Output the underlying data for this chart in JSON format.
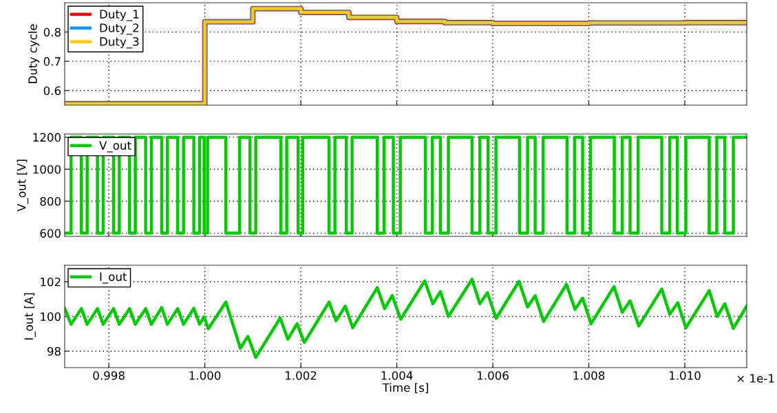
{
  "chart_data": [
    {
      "type": "step",
      "ylabel": "Duty cycle",
      "xlim": [
        0.99708,
        1.01129
      ],
      "xticks": [
        {
          "value": 0.998,
          "label": null
        },
        {
          "value": 1.0,
          "label": null
        },
        {
          "value": 1.002,
          "label": null
        },
        {
          "value": 1.004,
          "label": null
        },
        {
          "value": 1.006,
          "label": null
        },
        {
          "value": 1.008,
          "label": null
        },
        {
          "value": 1.01,
          "label": null
        }
      ],
      "ylim": [
        0.55,
        0.9
      ],
      "yticks": [
        0.6,
        0.7,
        0.8
      ],
      "tick_labels": "y",
      "grid": true,
      "legend": "top left",
      "series": [
        {
          "name": "Duty_1",
          "color": "#ff0000",
          "x": [
            0.99708,
            1.0,
            1.001,
            1.002,
            1.003,
            1.004,
            1.005,
            1.006,
            1.008,
            1.01,
            1.01129
          ],
          "values": [
            0.555,
            0.835,
            0.88,
            0.867,
            0.85,
            0.836,
            0.832,
            0.829,
            0.831,
            0.832,
            0.832
          ]
        },
        {
          "name": "Duty_2",
          "color": "#0099ff",
          "x": [
            0.99708,
            1.0,
            1.001,
            1.002,
            1.003,
            1.004,
            1.005,
            1.006,
            1.008,
            1.01,
            1.01129
          ],
          "values": [
            0.555,
            0.835,
            0.88,
            0.867,
            0.85,
            0.836,
            0.832,
            0.829,
            0.831,
            0.832,
            0.832
          ]
        },
        {
          "name": "Duty_3",
          "color": "#ffcc00",
          "x": [
            0.99708,
            1.0,
            1.001,
            1.002,
            1.003,
            1.004,
            1.005,
            1.006,
            1.008,
            1.01,
            1.01129
          ],
          "values": [
            0.555,
            0.835,
            0.88,
            0.867,
            0.85,
            0.836,
            0.832,
            0.829,
            0.831,
            0.832,
            0.832
          ]
        }
      ]
    },
    {
      "type": "step",
      "ylabel": "V_out [V]",
      "xlim": [
        0.99708,
        1.01129
      ],
      "xticks": [
        {
          "value": 0.998,
          "label": null
        },
        {
          "value": 1.0,
          "label": null
        },
        {
          "value": 1.002,
          "label": null
        },
        {
          "value": 1.004,
          "label": null
        },
        {
          "value": 1.006,
          "label": null
        },
        {
          "value": 1.008,
          "label": null
        },
        {
          "value": 1.01,
          "label": null
        }
      ],
      "ylim": [
        580,
        1220
      ],
      "yticks": [
        600,
        800,
        1000,
        1200
      ],
      "tick_labels": "y",
      "grid": true,
      "legend": "top left",
      "series": [
        {
          "name": "V_out",
          "color": "#00cc00",
          "x": [
            0.99708,
            0.997213,
            0.997428,
            0.997548,
            0.997763,
            0.997882,
            0.998097,
            0.998217,
            0.998432,
            0.998552,
            0.998767,
            0.998886,
            0.999101,
            0.99922,
            0.999435,
            0.999556,
            0.999771,
            0.99989,
            0.999986,
            1.000057,
            1.000439,
            1.000725,
            1.000941,
            1.001061,
            1.001586,
            1.001706,
            1.001944,
            1.00204,
            1.002589,
            1.00271,
            1.002948,
            1.003068,
            1.003593,
            1.003736,
            1.003928,
            1.004072,
            1.004597,
            1.00474,
            1.004908,
            1.005075,
            1.005567,
            1.005729,
            1.005901,
            1.006065,
            1.006556,
            1.006724,
            1.006882,
            1.007048,
            1.007546,
            1.007703,
            1.007871,
            1.008037,
            1.008531,
            1.008697,
            1.00886,
            1.009027,
            1.00952,
            1.009686,
            1.009844,
            1.010022,
            1.010509,
            1.010667,
            1.010833,
            1.011011,
            1.01129
          ],
          "values": [
            600,
            1200,
            600,
            1200,
            600,
            1200,
            600,
            1200,
            600,
            1200,
            600,
            1200,
            600,
            1200,
            600,
            1200,
            600,
            1200,
            600,
            1200,
            600,
            1200,
            600,
            1200,
            600,
            1200,
            600,
            1200,
            600,
            1200,
            600,
            1200,
            600,
            1200,
            600,
            1200,
            600,
            1200,
            600,
            1200,
            600,
            1200,
            600,
            1200,
            600,
            1200,
            600,
            1200,
            600,
            1200,
            600,
            1200,
            600,
            1200,
            600,
            1200,
            600,
            1200,
            600,
            1200,
            600,
            1200,
            600,
            1200,
            1200
          ]
        }
      ]
    },
    {
      "type": "line",
      "ylabel": "I_out [A]",
      "xlabel": "Time [s]",
      "annotations": [
        "× 1e-1"
      ],
      "xlim": [
        0.99708,
        1.01129
      ],
      "xticks": [
        0.998,
        {
          "value": 1.0,
          "label": "1.000"
        },
        1.002,
        1.004,
        1.006,
        1.008,
        {
          "value": 1.01,
          "label": "1.010"
        }
      ],
      "ylim": [
        97.05,
        102.95
      ],
      "yticks": [
        98,
        100,
        102
      ],
      "grid": true,
      "legend": "top left",
      "series": [
        {
          "name": "I_out",
          "color": "#00cc00",
          "x": [
            0.99708,
            0.997213,
            0.997428,
            0.997548,
            0.997763,
            0.997882,
            0.998097,
            0.998217,
            0.998432,
            0.998552,
            0.998767,
            0.998886,
            0.999101,
            0.99922,
            0.999435,
            0.999556,
            0.999771,
            0.99989,
            0.999986,
            1.000072,
            1.000439,
            1.00074,
            1.000898,
            1.001061,
            1.001571,
            1.001729,
            1.001921,
            1.002073,
            1.002589,
            1.002733,
            1.002925,
            1.003082,
            1.003593,
            1.003746,
            1.003904,
            1.00408,
            1.004582,
            1.00475,
            1.004908,
            1.005075,
            1.005567,
            1.005729,
            1.005887,
            1.006069,
            1.006546,
            1.006724,
            1.006882,
            1.007058,
            1.007535,
            1.007713,
            1.007871,
            1.008047,
            1.008525,
            1.008697,
            1.00886,
            1.009041,
            1.00952,
            1.009686,
            1.009854,
            1.010022,
            1.010509,
            1.010675,
            1.010833,
            1.011011,
            1.011288
          ],
          "values": [
            100.47,
            99.55,
            100.45,
            99.55,
            100.45,
            99.55,
            100.45,
            99.55,
            100.45,
            99.55,
            100.45,
            99.55,
            100.51,
            99.55,
            100.45,
            99.55,
            100.47,
            99.55,
            99.97,
            99.29,
            100.83,
            98.17,
            98.85,
            97.64,
            99.91,
            98.69,
            99.58,
            98.5,
            100.83,
            99.75,
            100.59,
            99.35,
            101.66,
            100.45,
            101.2,
            99.84,
            102.05,
            100.73,
            101.43,
            100.0,
            102.14,
            100.73,
            101.37,
            99.89,
            102.02,
            100.55,
            101.19,
            99.71,
            101.85,
            100.4,
            101.06,
            99.58,
            101.72,
            100.24,
            100.9,
            99.45,
            101.58,
            100.13,
            100.79,
            99.34,
            101.49,
            100.0,
            100.73,
            99.31,
            100.59
          ]
        }
      ]
    }
  ]
}
